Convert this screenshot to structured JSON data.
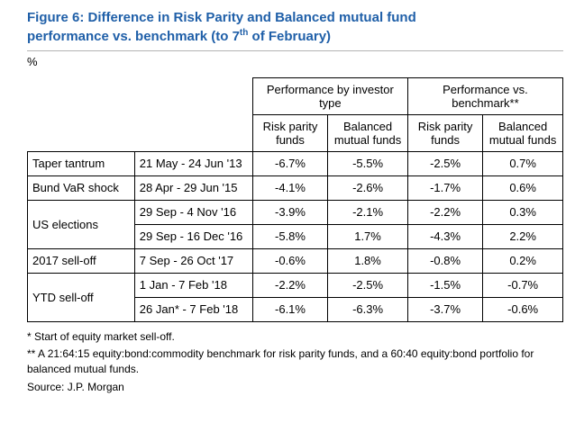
{
  "colors": {
    "title_blue": "#1f5fa8",
    "table_border": "#000000",
    "title_rule_gray": "#b3b3b3"
  },
  "figure": {
    "title_line1": "Figure 6: Difference in Risk Parity and Balanced mutual fund",
    "title_line2_before_sup": "performance vs. benchmark (to 7",
    "title_superscript": "th",
    "title_line2_after_sup": " of February)",
    "unit_label": "%"
  },
  "table": {
    "group_headers": [
      "Performance by investor type",
      "Performance vs. benchmark**"
    ],
    "column_headers": [
      "Risk parity funds",
      "Balanced mutual funds",
      "Risk parity funds",
      "Balanced mutual funds"
    ],
    "rows": [
      {
        "event": "Taper tantrum",
        "period": "21 May - 24 Jun '13",
        "values": [
          "-6.7%",
          "-5.5%",
          "-2.5%",
          "0.7%"
        ]
      },
      {
        "event": "Bund VaR shock",
        "period": "28 Apr - 29 Jun '15",
        "values": [
          "-4.1%",
          "-2.6%",
          "-1.7%",
          "0.6%"
        ]
      },
      {
        "event": "US elections",
        "period": "29 Sep - 4 Nov '16",
        "values": [
          "-3.9%",
          "-2.1%",
          "-2.2%",
          "0.3%"
        ]
      },
      {
        "period": "29 Sep - 16 Dec '16",
        "values": [
          "-5.8%",
          "1.7%",
          "-4.3%",
          "2.2%"
        ]
      },
      {
        "event": "2017 sell-off",
        "period": "7 Sep - 26 Oct '17",
        "values": [
          "-0.6%",
          "1.8%",
          "-0.8%",
          "0.2%"
        ]
      },
      {
        "event": "YTD sell-off",
        "period": "1 Jan - 7 Feb '18",
        "values": [
          "-2.2%",
          "-2.5%",
          "-1.5%",
          "-0.7%"
        ]
      },
      {
        "period": "26 Jan* - 7 Feb '18",
        "values": [
          "-6.1%",
          "-6.3%",
          "-3.7%",
          "-0.6%"
        ]
      }
    ]
  },
  "footnotes": {
    "note1": "* Start of equity market sell-off.",
    "note2": "** A 21:64:15 equity:bond:commodity benchmark for risk parity funds, and a 60:40 equity:bond portfolio for balanced mutual funds.",
    "source": "Source: J.P. Morgan"
  }
}
